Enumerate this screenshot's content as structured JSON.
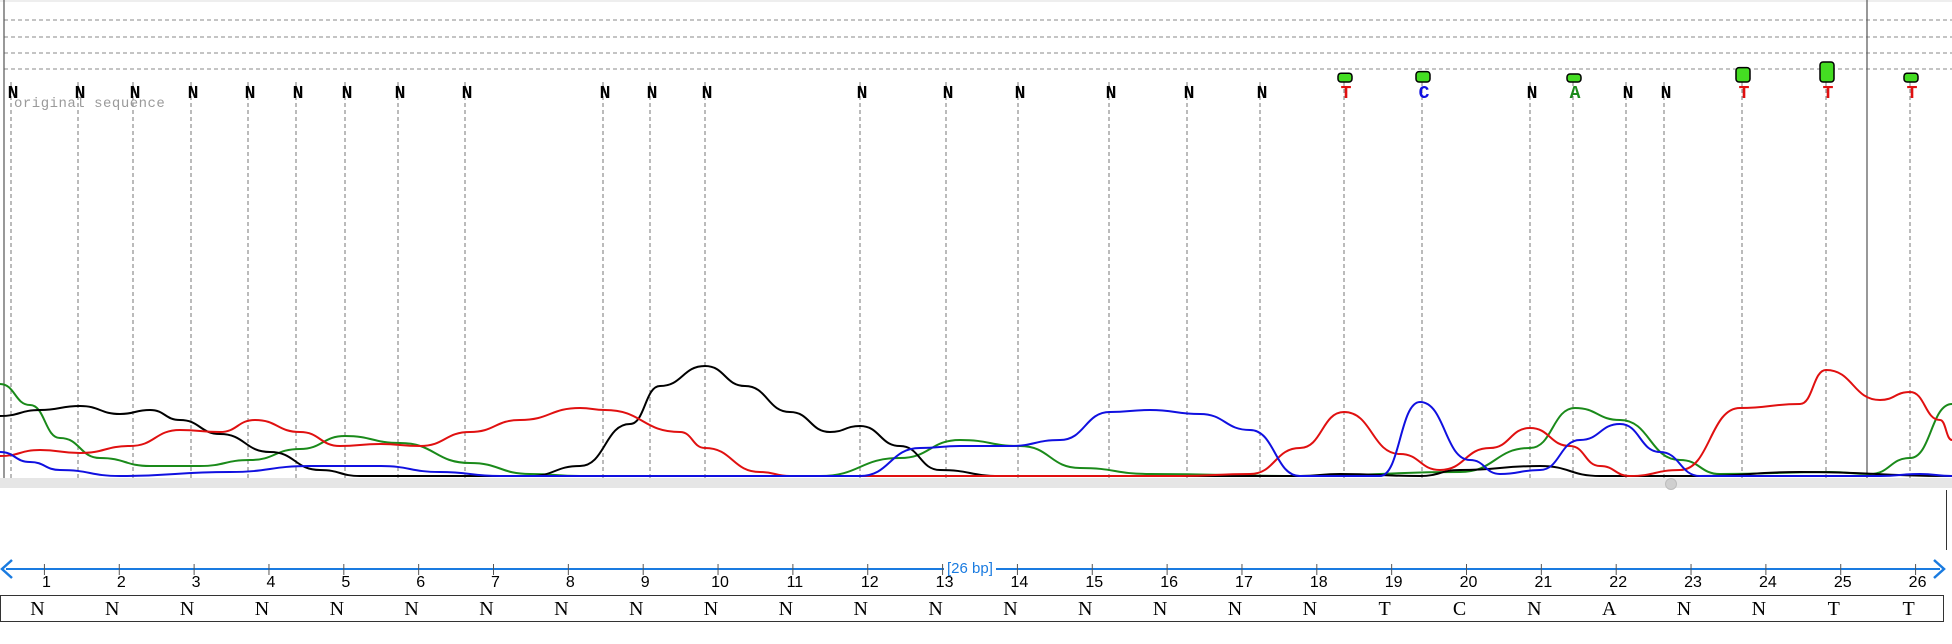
{
  "trace": {
    "original_sequence_label": "original sequence",
    "called_bases": [
      "N",
      "N",
      "N",
      "N",
      "N",
      "N",
      "N",
      "N",
      "N",
      "N",
      "N",
      "N",
      "N",
      "N",
      "N",
      "N",
      "N",
      "N",
      "T",
      "C",
      "N",
      "A",
      "N",
      "N",
      "T",
      "T",
      "T"
    ],
    "called_base_channels": [
      "n",
      "n",
      "n",
      "n",
      "n",
      "n",
      "n",
      "n",
      "n",
      "n",
      "n",
      "n",
      "n",
      "n",
      "n",
      "n",
      "n",
      "n",
      "t",
      "c",
      "n",
      "a",
      "n",
      "n",
      "t",
      "t",
      "t"
    ],
    "quality_bars": [
      0,
      0,
      0,
      0,
      0,
      0,
      0,
      0,
      0,
      0,
      0,
      0,
      0,
      0,
      0,
      0,
      0,
      0,
      0.3,
      0.4,
      0,
      0.25,
      0,
      0,
      0.65,
      1.0,
      0.3
    ],
    "channel_colors": {
      "a": "#1a8a1a",
      "c": "#1010e0",
      "g": "#000000",
      "t": "#e01010",
      "n": "#000000"
    },
    "quality_bar_color": "#44dd22"
  },
  "ruler": {
    "length_label": "[26 bp]",
    "positions": [
      "1",
      "2",
      "3",
      "4",
      "5",
      "6",
      "7",
      "8",
      "9",
      "10",
      "11",
      "12",
      "13",
      "14",
      "15",
      "16",
      "17",
      "18",
      "19",
      "20",
      "21",
      "22",
      "23",
      "24",
      "25",
      "26"
    ],
    "bases": [
      "N",
      "N",
      "N",
      "N",
      "N",
      "N",
      "N",
      "N",
      "N",
      "N",
      "N",
      "N",
      "N",
      "N",
      "N",
      "N",
      "N",
      "N",
      "T",
      "C",
      "N",
      "A",
      "N",
      "N",
      "T",
      "T"
    ],
    "color": "#1a7be0"
  }
}
